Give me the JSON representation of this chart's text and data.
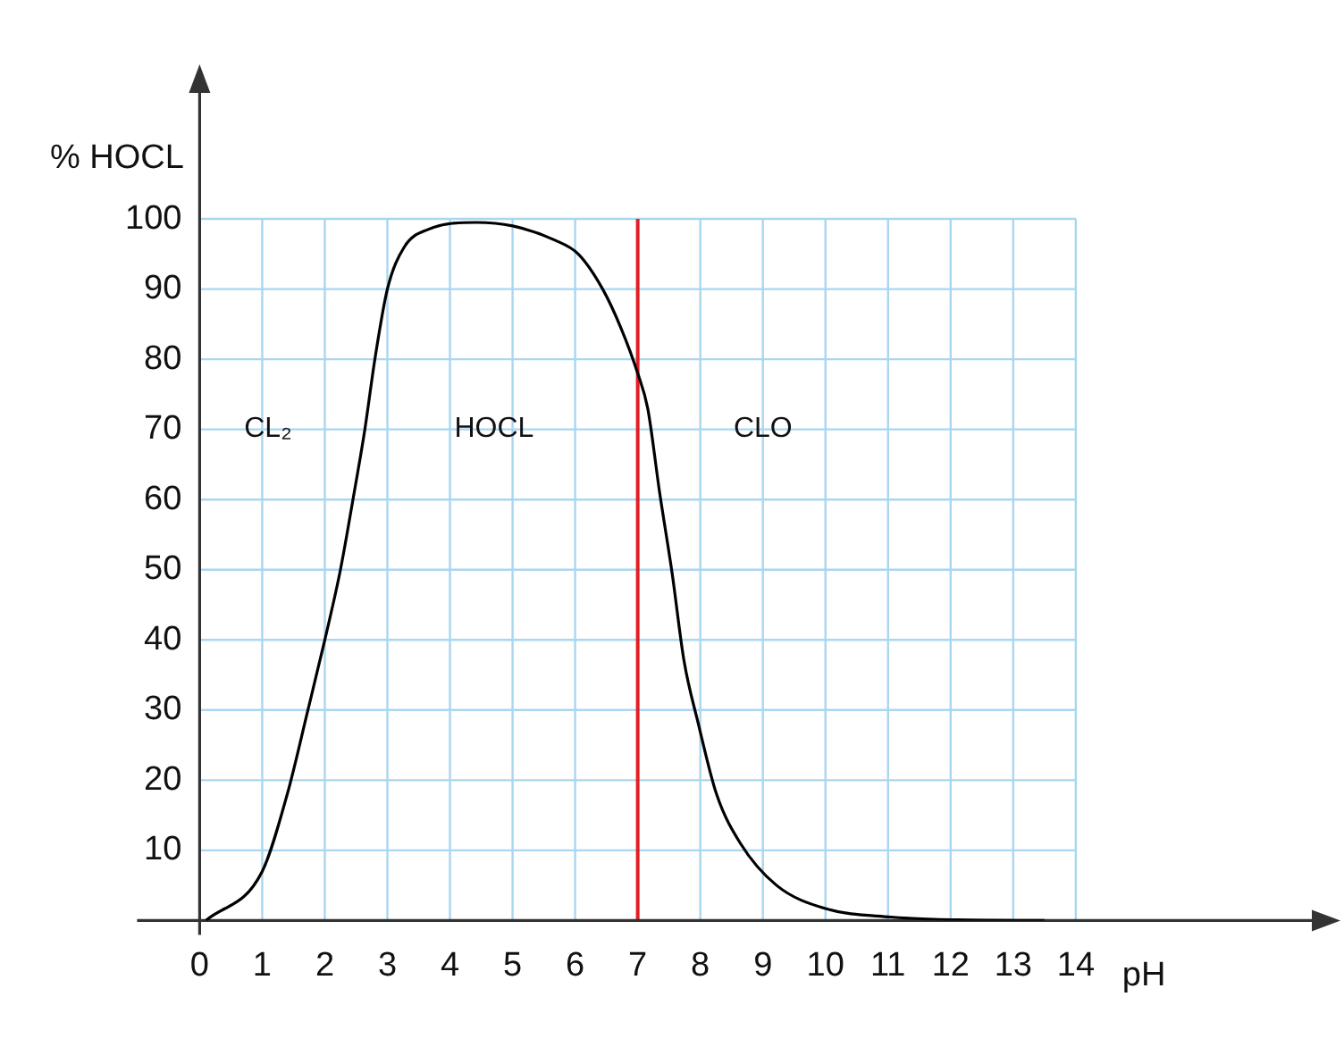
{
  "chart_data": {
    "type": "line",
    "xlabel": "pH",
    "ylabel": "% HOCL",
    "xlim": [
      0,
      18
    ],
    "ylim": [
      0,
      120
    ],
    "xticks": [
      0,
      1,
      2,
      3,
      4,
      5,
      6,
      7,
      8,
      9,
      10,
      11,
      12,
      13,
      14
    ],
    "yticks": [
      10,
      20,
      30,
      40,
      50,
      60,
      70,
      80,
      90,
      100
    ],
    "grid": true,
    "legend": false,
    "marker": "none",
    "line_style": "solid",
    "series": [
      {
        "color": "#000000",
        "x": [
          0.1,
          1,
          1.4,
          1.73,
          2,
          2.25,
          2.45,
          2.64,
          2.8,
          3,
          3.27,
          3.65,
          4.42,
          5,
          5.67,
          6.05,
          6.44,
          6.73,
          7,
          7.16,
          7.35,
          7.55,
          7.74,
          7.97,
          8.26,
          8.64,
          9.22,
          10,
          11.04,
          12.1,
          13.5
        ],
        "values": [
          0,
          7,
          18,
          30,
          40,
          50,
          60,
          70,
          80,
          90,
          96,
          98.5,
          99.5,
          99,
          97,
          95,
          90,
          84.5,
          78,
          73,
          61,
          49.5,
          37,
          28,
          18,
          11,
          5,
          1.7,
          0.5,
          0.1,
          0
        ]
      }
    ],
    "ref_lines": [
      {
        "axis": "x",
        "value": 7,
        "color": "#e31e24"
      }
    ],
    "annotations": [
      "CL₂",
      "HOCL",
      "CLO"
    ]
  }
}
